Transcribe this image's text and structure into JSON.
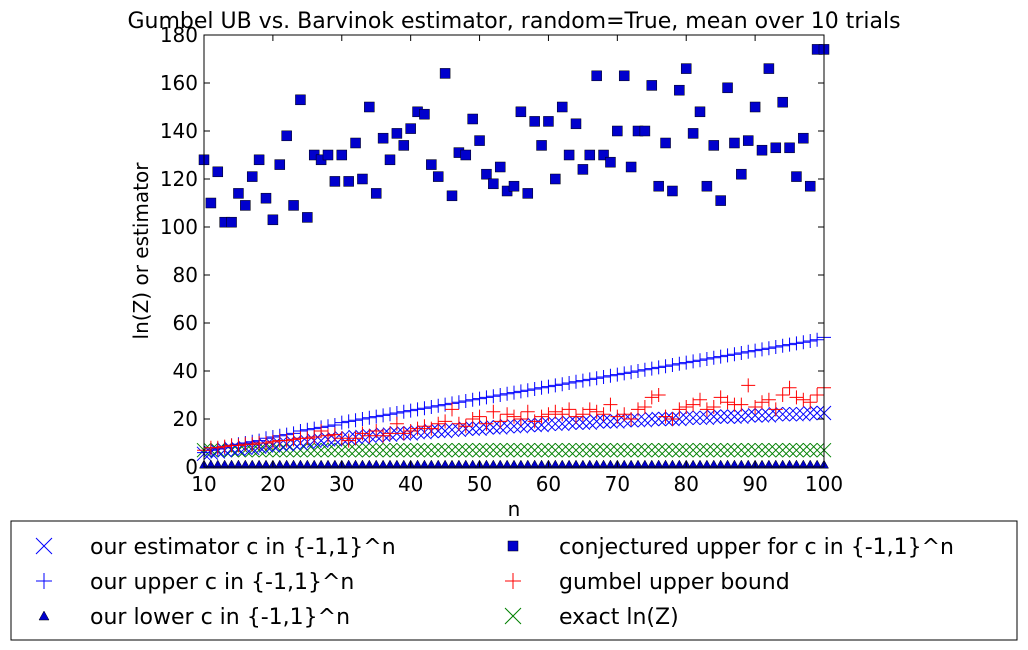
{
  "chart_data": {
    "type": "scatter",
    "title": "Gumbel UB vs. Barvinok estimator, random=True, mean over 10 trials",
    "xlabel": "n",
    "ylabel": "ln(Z) or estimator",
    "xlim": [
      10,
      100
    ],
    "ylim": [
      0,
      180
    ],
    "xticks": [
      "10",
      "20",
      "30",
      "40",
      "50",
      "60",
      "70",
      "80",
      "90",
      "100"
    ],
    "yticks": [
      "0",
      "20",
      "40",
      "60",
      "80",
      "100",
      "120",
      "140",
      "160",
      "180"
    ],
    "grid": false,
    "legend_position": "below",
    "x": [
      10,
      11,
      12,
      13,
      14,
      15,
      16,
      17,
      18,
      19,
      20,
      21,
      22,
      23,
      24,
      25,
      26,
      27,
      28,
      29,
      30,
      31,
      32,
      33,
      34,
      35,
      36,
      37,
      38,
      39,
      40,
      41,
      42,
      43,
      44,
      45,
      46,
      47,
      48,
      49,
      50,
      51,
      52,
      53,
      54,
      55,
      56,
      57,
      58,
      59,
      60,
      61,
      62,
      63,
      64,
      65,
      66,
      67,
      68,
      69,
      70,
      71,
      72,
      73,
      74,
      75,
      76,
      77,
      78,
      79,
      80,
      81,
      82,
      83,
      84,
      85,
      86,
      87,
      88,
      89,
      90,
      91,
      92,
      93,
      94,
      95,
      96,
      97,
      98,
      99,
      100
    ],
    "series": [
      {
        "name": "our estimator c in {-1,1}^n",
        "marker": "x",
        "color": "#0000ff",
        "values": [
          5.5,
          6,
          6.5,
          7,
          7.5,
          7.5,
          8,
          8,
          8.5,
          9,
          9,
          9.5,
          9.5,
          10,
          10,
          10.5,
          11,
          11,
          11.5,
          11.5,
          12,
          12,
          12.5,
          12.5,
          13,
          13,
          13.5,
          13.5,
          14,
          14,
          14,
          14.5,
          14.5,
          15,
          15,
          15,
          15.5,
          15.5,
          16,
          16,
          16,
          16.5,
          16.5,
          16.5,
          17,
          17,
          17,
          17.5,
          17.5,
          17.5,
          18,
          18,
          18,
          18.5,
          18.5,
          18.5,
          18.5,
          19,
          19,
          19,
          19,
          19.5,
          19.5,
          19.5,
          19.5,
          20,
          20,
          20,
          20,
          20,
          20.5,
          20.5,
          20.5,
          20.5,
          21,
          21,
          21,
          21,
          21,
          21.5,
          21.5,
          21.5,
          21.5,
          22,
          22,
          22,
          22,
          22,
          22.5,
          22.5,
          22.5
        ]
      },
      {
        "name": "our upper c in {-1,1}^n",
        "marker": "+",
        "color": "#0000ff",
        "values": [
          6,
          7,
          7.5,
          8,
          9,
          9.5,
          10,
          10.5,
          11,
          12,
          12.5,
          13,
          13.5,
          14,
          15,
          15.5,
          16,
          16.5,
          17,
          17.5,
          18.5,
          19,
          19.5,
          20,
          20.5,
          21,
          21.5,
          22,
          22.5,
          23,
          23.5,
          24,
          24.5,
          25,
          25.5,
          26,
          26.5,
          27,
          27.5,
          28,
          28.5,
          29,
          29.5,
          30,
          30.5,
          31,
          31.5,
          32,
          32.5,
          33,
          33.5,
          34,
          34.5,
          35,
          35.5,
          36,
          36.5,
          37,
          37.5,
          38,
          38.5,
          39,
          39.5,
          40,
          40.5,
          41,
          41.5,
          42,
          42.5,
          43,
          43.5,
          44,
          44.5,
          45,
          45.5,
          46,
          46.5,
          47,
          47.5,
          48,
          48.5,
          49,
          49.5,
          50,
          50.5,
          51,
          51.5,
          52,
          52.5,
          53,
          54
        ]
      },
      {
        "name": "our lower c in {-1,1}^n",
        "marker": "^",
        "color": "#0000cd",
        "values": [
          1,
          1,
          1,
          1,
          1,
          1,
          1,
          1,
          1,
          1,
          1,
          1,
          1,
          1,
          1,
          1,
          1,
          1,
          1,
          1,
          1,
          1,
          1,
          1,
          1,
          1,
          1,
          1,
          1,
          1,
          1,
          1,
          1,
          1,
          1,
          1,
          1,
          1,
          1,
          1,
          1,
          1,
          1,
          1,
          1,
          1,
          1,
          1,
          1,
          1,
          1,
          1,
          1,
          1,
          1,
          1,
          1,
          1,
          1,
          1,
          1,
          1,
          1,
          1,
          1,
          1,
          1,
          1,
          1,
          1,
          1,
          1,
          1,
          1,
          1,
          1,
          1,
          1,
          1,
          1,
          1,
          1,
          1,
          1,
          1,
          1,
          1,
          1,
          1,
          1,
          1
        ]
      },
      {
        "name": "conjectured upper for c in {-1,1}^n",
        "marker": "s",
        "color": "#0000cd",
        "values": [
          128,
          110,
          123,
          102,
          102,
          114,
          109,
          121,
          128,
          112,
          103,
          126,
          138,
          109,
          153,
          104,
          130,
          128,
          130,
          119,
          130,
          119,
          135,
          120,
          150,
          114,
          137,
          128,
          139,
          134,
          141,
          148,
          147,
          126,
          121,
          164,
          113,
          131,
          130,
          145,
          136,
          122,
          118,
          125,
          115,
          117,
          148,
          114,
          144,
          134,
          144,
          120,
          150,
          130,
          143,
          124,
          130,
          163,
          130,
          127,
          140,
          163,
          125,
          140,
          140,
          159,
          117,
          135,
          115,
          157,
          166,
          139,
          148,
          117,
          134,
          111,
          158,
          135,
          122,
          136,
          150,
          132,
          166,
          133,
          152,
          133,
          121,
          137,
          117,
          174,
          174
        ]
      },
      {
        "name": "gumbel upper bound",
        "marker": "+",
        "color": "#ff0000",
        "values": [
          7,
          8,
          8,
          8.5,
          9,
          9,
          9.5,
          9.5,
          10,
          10,
          10.5,
          11,
          11,
          11.5,
          12,
          12,
          12.5,
          15,
          13,
          13.5,
          12,
          11,
          12,
          14,
          13,
          15,
          13,
          14,
          18,
          14,
          15,
          16,
          17,
          16,
          18,
          19,
          24,
          18,
          17,
          20,
          21,
          18,
          23,
          19,
          22,
          21,
          20,
          23,
          19,
          21,
          22,
          23,
          22,
          24,
          21,
          22,
          24,
          23,
          22,
          26,
          21,
          22,
          20,
          24,
          25,
          29,
          30,
          21,
          20,
          24,
          25,
          26,
          28,
          24,
          25,
          29,
          27,
          26,
          26,
          34,
          25,
          27,
          28,
          24,
          30,
          33,
          29,
          28,
          27,
          30,
          33
        ]
      },
      {
        "name": "exact ln(Z)",
        "marker": "x",
        "color": "#008000",
        "values": [
          7,
          7,
          7,
          7,
          7,
          7,
          7,
          7,
          7,
          7,
          7,
          7,
          7,
          7,
          7,
          7,
          7,
          7,
          7,
          7,
          7,
          7,
          7,
          7,
          7,
          7,
          7,
          7,
          7,
          7,
          7,
          7,
          7,
          7,
          7,
          7,
          7,
          7,
          7,
          7,
          7,
          7,
          7,
          7,
          7,
          7,
          7,
          7,
          7,
          7,
          7,
          7,
          7,
          7,
          7,
          7,
          7,
          7,
          7,
          7,
          7,
          7,
          7,
          7,
          7,
          7,
          7,
          7,
          7,
          7,
          7,
          7,
          7,
          7,
          7,
          7,
          7,
          7,
          7,
          7,
          7,
          7,
          7,
          7,
          7,
          7,
          7,
          7,
          7,
          7,
          7
        ]
      }
    ]
  }
}
